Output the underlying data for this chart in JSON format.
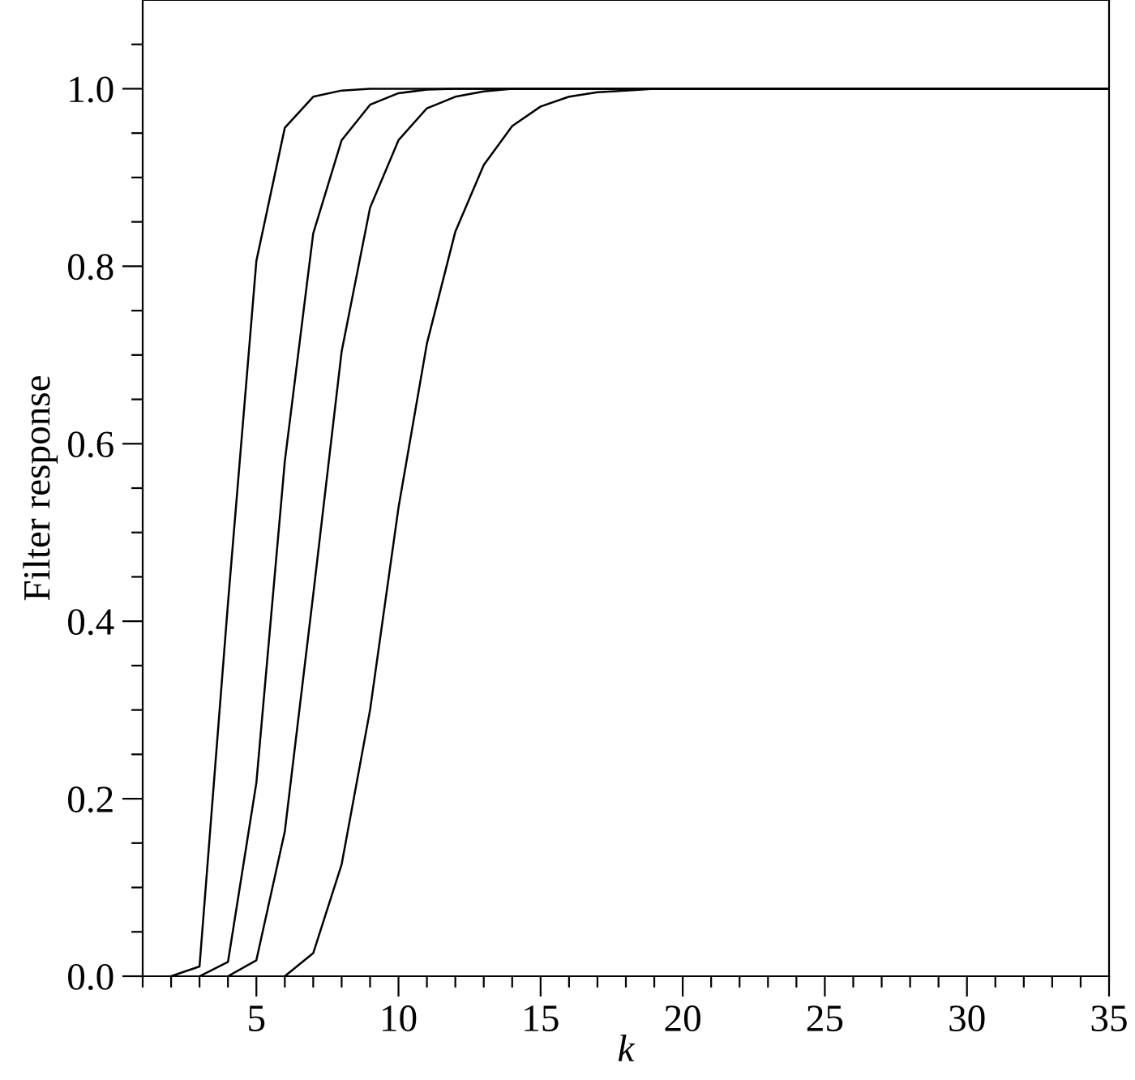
{
  "chart_data": {
    "type": "line",
    "xlabel": "k",
    "ylabel": "Filter response",
    "series": [
      {
        "color": "#000000",
        "x": [
          2,
          3,
          4,
          5,
          6,
          7,
          8,
          9,
          35
        ],
        "values": [
          0,
          0.011,
          0.42,
          0.806,
          0.956,
          0.991,
          0.998,
          1.0,
          1.0
        ]
      },
      {
        "color": "#000000",
        "x": [
          3,
          4,
          5,
          6,
          7,
          8,
          9,
          10,
          11,
          12,
          35
        ],
        "values": [
          0,
          0.016,
          0.218,
          0.58,
          0.837,
          0.942,
          0.982,
          0.995,
          0.999,
          1.0,
          1.0
        ]
      },
      {
        "color": "#000000",
        "x": [
          4,
          5,
          6,
          7,
          8,
          9,
          10,
          11,
          12,
          13,
          14,
          35
        ],
        "values": [
          0,
          0.018,
          0.163,
          0.43,
          0.704,
          0.866,
          0.942,
          0.978,
          0.991,
          0.997,
          1.0,
          1.0
        ]
      },
      {
        "color": "#000000",
        "x": [
          6,
          7,
          8,
          9,
          10,
          11,
          12,
          13,
          14,
          15,
          16,
          17,
          18,
          19,
          35
        ],
        "values": [
          0,
          0.026,
          0.126,
          0.3,
          0.528,
          0.713,
          0.839,
          0.914,
          0.958,
          0.98,
          0.991,
          0.996,
          0.998,
          1.0,
          1.0
        ]
      }
    ],
    "xlim": [
      1,
      35
    ],
    "xticks": [
      5,
      10,
      15,
      20,
      25,
      30,
      35,
      {
        "value": 1,
        "label": null
      },
      {
        "value": 2,
        "label": null
      },
      {
        "value": 3,
        "label": null
      },
      {
        "value": 4,
        "label": null
      },
      {
        "value": 6,
        "label": null
      },
      {
        "value": 7,
        "label": null
      },
      {
        "value": 8,
        "label": null
      },
      {
        "value": 9,
        "label": null
      },
      {
        "value": 11,
        "label": null
      },
      {
        "value": 12,
        "label": null
      },
      {
        "value": 13,
        "label": null
      },
      {
        "value": 14,
        "label": null
      },
      {
        "value": 16,
        "label": null
      },
      {
        "value": 17,
        "label": null
      },
      {
        "value": 18,
        "label": null
      },
      {
        "value": 19,
        "label": null
      },
      {
        "value": 21,
        "label": null
      },
      {
        "value": 22,
        "label": null
      },
      {
        "value": 23,
        "label": null
      },
      {
        "value": 24,
        "label": null
      },
      {
        "value": 26,
        "label": null
      },
      {
        "value": 27,
        "label": null
      },
      {
        "value": 28,
        "label": null
      },
      {
        "value": 29,
        "label": null
      },
      {
        "value": 31,
        "label": null
      },
      {
        "value": 32,
        "label": null
      },
      {
        "value": 33,
        "label": null
      },
      {
        "value": 34,
        "label": null
      }
    ],
    "ylim": [
      0,
      1.1
    ],
    "yticks": [
      {
        "value": 0,
        "label": "0.0"
      },
      {
        "value": 0.2,
        "label": "0.2"
      },
      {
        "value": 0.4,
        "label": "0.4"
      },
      {
        "value": 0.6,
        "label": "0.6"
      },
      {
        "value": 0.8,
        "label": "0.8"
      },
      {
        "value": 1.0,
        "label": "1.0"
      },
      {
        "value": 0.05,
        "label": null
      },
      {
        "value": 0.1,
        "label": null
      },
      {
        "value": 0.15,
        "label": null
      },
      {
        "value": 0.25,
        "label": null
      },
      {
        "value": 0.3,
        "label": null
      },
      {
        "value": 0.35,
        "label": null
      },
      {
        "value": 0.45,
        "label": null
      },
      {
        "value": 0.5,
        "label": null
      },
      {
        "value": 0.55,
        "label": null
      },
      {
        "value": 0.65,
        "label": null
      },
      {
        "value": 0.7,
        "label": null
      },
      {
        "value": 0.75,
        "label": null
      },
      {
        "value": 0.85,
        "label": null
      },
      {
        "value": 0.9,
        "label": null
      },
      {
        "value": 0.95,
        "label": null
      },
      {
        "value": 1.05,
        "label": null
      }
    ],
    "grid": false,
    "legend": false,
    "marker": "none",
    "line_style": "solid"
  }
}
